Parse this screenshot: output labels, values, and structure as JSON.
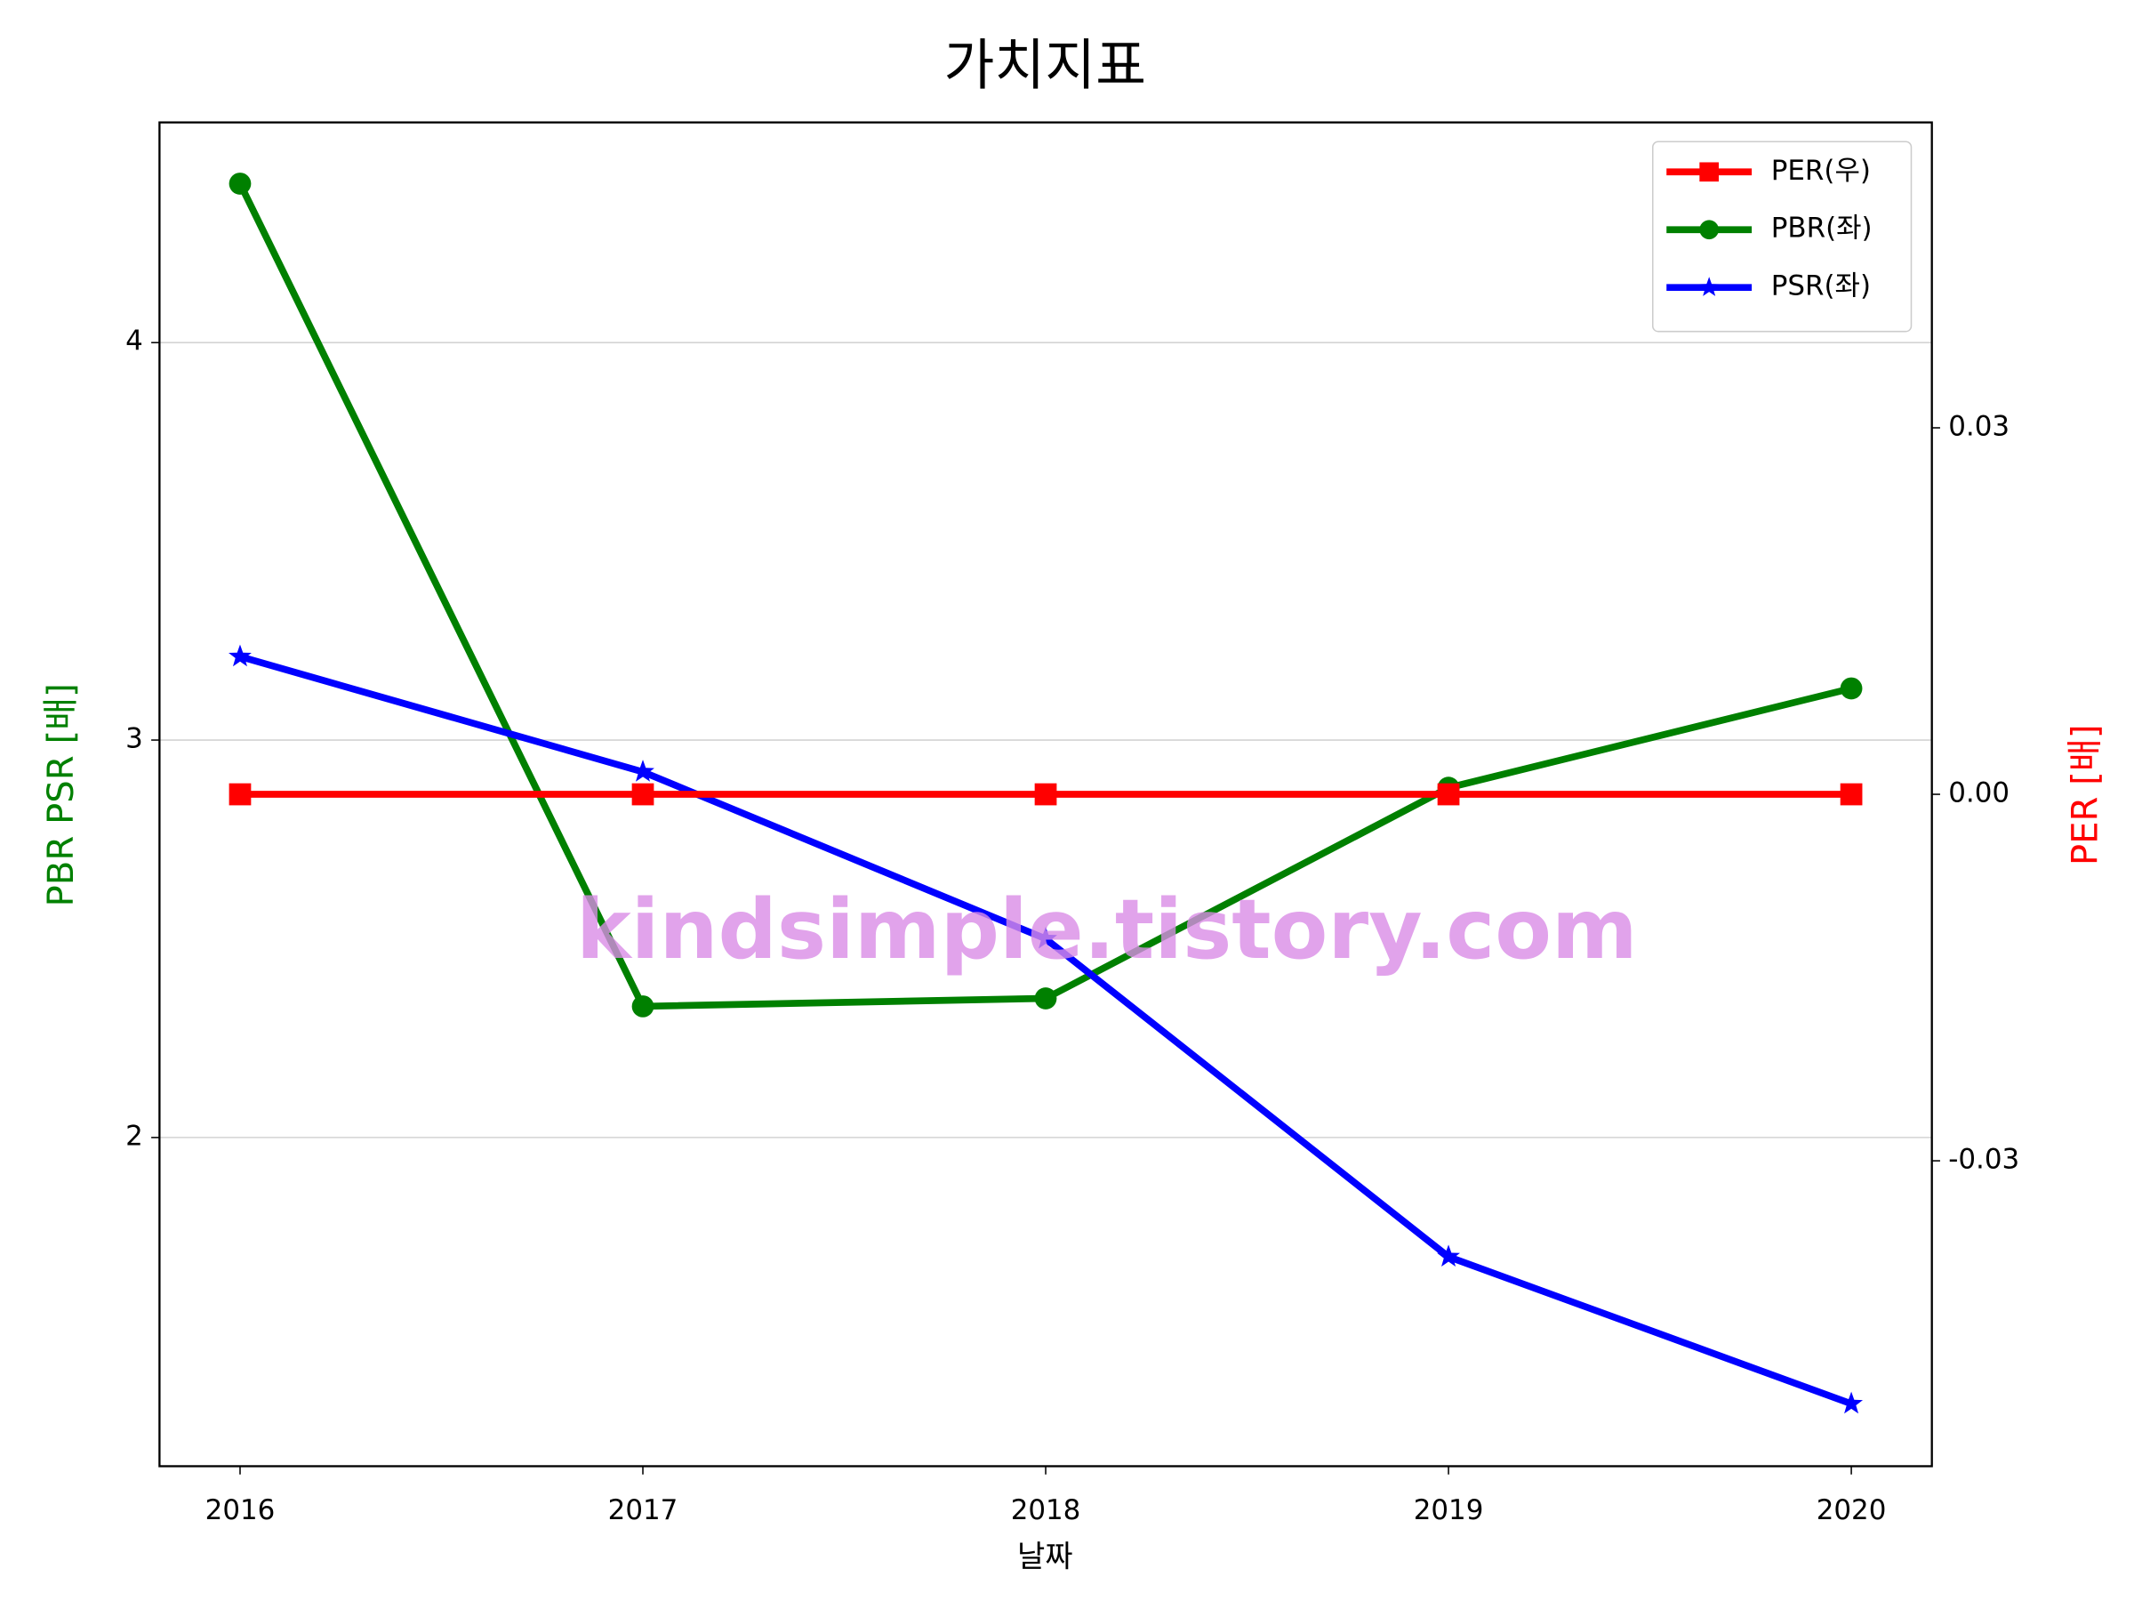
{
  "chart_data": {
    "type": "line",
    "title": "가치지표",
    "x": [
      2016,
      2017,
      2018,
      2019,
      2020
    ],
    "xlim": [
      2015.8,
      2020.2
    ],
    "xticks": [
      2016,
      2017,
      2018,
      2019,
      2020
    ],
    "xlabel": "날짜",
    "ylabel": "PBR PSR [배]",
    "y2label": "PER [배]",
    "ylim": [
      1.173,
      4.554
    ],
    "yticks": [
      2,
      3,
      4
    ],
    "y2lim": [
      -0.055,
      0.055
    ],
    "y2ticks": [
      -0.03,
      {
        "value": 0,
        "label": "0.00"
      },
      0.03
    ],
    "grid": true,
    "legend": "upper right",
    "annotation": "kindsimple.tistory.com",
    "series": [
      {
        "name": "PER(우)",
        "color": "#ff0000",
        "marker": "square",
        "axis": "y2",
        "values": [
          0,
          0,
          0,
          0,
          0
        ]
      },
      {
        "name": "PBR(좌)",
        "color": "#008000",
        "marker": "circle",
        "values": [
          4.4,
          2.33,
          2.35,
          2.88,
          3.13
        ]
      },
      {
        "name": "PSR(좌)",
        "color": "#0000ff",
        "marker": "star",
        "values": [
          3.21,
          2.92,
          2.5,
          1.7,
          1.33
        ]
      }
    ]
  }
}
